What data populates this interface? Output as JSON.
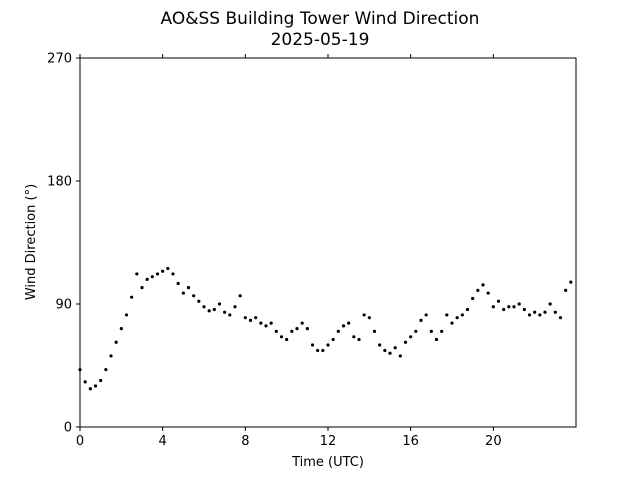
{
  "chart_data": {
    "type": "scatter",
    "title": "AO&SS Building Tower Wind Direction",
    "subtitle": "2025-05-19",
    "xlabel": "Time (UTC)",
    "ylabel": "Wind Direction (°)",
    "xlim": [
      0,
      24
    ],
    "ylim": [
      0,
      270
    ],
    "xticks": [
      0,
      4,
      8,
      12,
      16,
      20
    ],
    "yticks": [
      0,
      90,
      180,
      270
    ],
    "grid": false,
    "marker_color": "#000000",
    "series": [
      {
        "x": [
          0.0,
          0.25,
          0.5,
          0.75,
          1.0,
          1.25,
          1.5,
          1.75,
          2.0,
          2.25,
          2.5,
          2.75,
          3.0,
          3.25,
          3.5,
          3.75,
          4.0,
          4.25,
          4.5,
          4.75,
          5.0,
          5.25,
          5.5,
          5.75,
          6.0,
          6.25,
          6.5,
          6.75,
          7.0,
          7.25,
          7.5,
          7.75,
          8.0,
          8.25,
          8.5,
          8.75,
          9.0,
          9.25,
          9.5,
          9.75,
          10.0,
          10.25,
          10.5,
          10.75,
          11.0,
          11.25,
          11.5,
          11.75,
          12.0,
          12.25,
          12.5,
          12.75,
          13.0,
          13.25,
          13.5,
          13.75,
          14.0,
          14.25,
          14.5,
          14.75,
          15.0,
          15.25,
          15.5,
          15.75,
          16.0,
          16.25,
          16.5,
          16.75,
          17.0,
          17.25,
          17.5,
          17.75,
          18.0,
          18.25,
          18.5,
          18.75,
          19.0,
          19.25,
          19.5,
          19.75,
          20.0,
          20.25,
          20.5,
          20.75,
          21.0,
          21.25,
          21.5,
          21.75,
          22.0,
          22.25,
          22.5,
          22.75,
          23.0,
          23.25,
          23.5,
          23.75
        ],
        "y": [
          42,
          33,
          28,
          30,
          34,
          42,
          52,
          62,
          72,
          82,
          95,
          112,
          102,
          108,
          110,
          112,
          114,
          116,
          112,
          105,
          98,
          102,
          96,
          92,
          88,
          85,
          86,
          90,
          84,
          82,
          88,
          96,
          80,
          78,
          80,
          76,
          74,
          76,
          70,
          66,
          64,
          70,
          72,
          76,
          72,
          60,
          56,
          56,
          60,
          64,
          70,
          74,
          76,
          66,
          64,
          82,
          80,
          70,
          60,
          56,
          54,
          58,
          52,
          62,
          66,
          70,
          78,
          82,
          70,
          64,
          70,
          82,
          76,
          80,
          82,
          86,
          94,
          100,
          104,
          98,
          88,
          92,
          86,
          88,
          88,
          90,
          86,
          82,
          84,
          82,
          84,
          90,
          84,
          80,
          100,
          106
        ]
      }
    ]
  }
}
